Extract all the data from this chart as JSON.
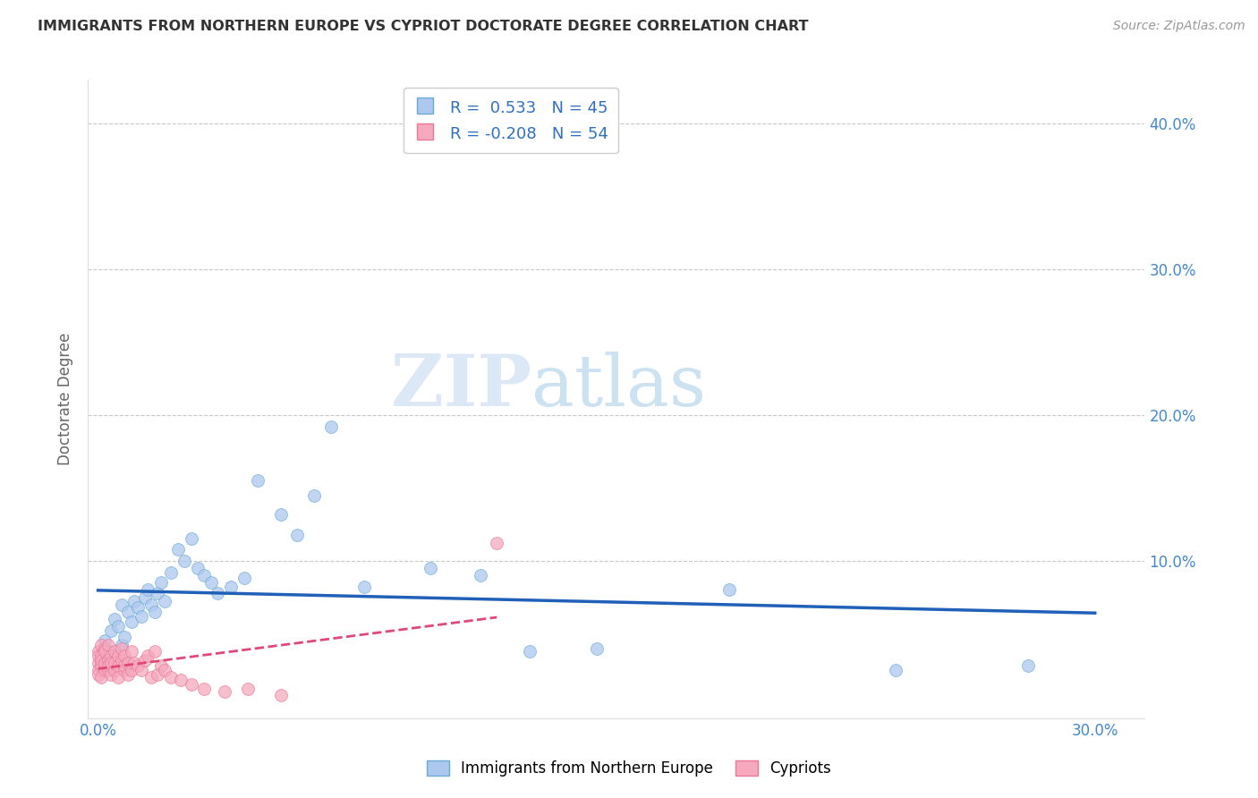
{
  "title": "IMMIGRANTS FROM NORTHERN EUROPE VS CYPRIOT DOCTORATE DEGREE CORRELATION CHART",
  "source": "Source: ZipAtlas.com",
  "ylabel": "Doctorate Degree",
  "legend_label_blue": "Immigrants from Northern Europe",
  "legend_label_pink": "Cypriots",
  "blue_R": 0.533,
  "blue_N": 45,
  "pink_R": -0.208,
  "pink_N": 54,
  "blue_color": "#adc8ee",
  "pink_color": "#f5a8be",
  "blue_edge_color": "#6aaad4",
  "pink_edge_color": "#e87898",
  "blue_line_color": "#2060b8",
  "pink_line_color": "#e04878",
  "xlim": [
    -0.003,
    0.315
  ],
  "ylim": [
    -0.008,
    0.43
  ],
  "xtick_positions": [
    0.0,
    0.05,
    0.1,
    0.15,
    0.2,
    0.25,
    0.3
  ],
  "ytick_positions": [
    0.0,
    0.1,
    0.2,
    0.3,
    0.4
  ],
  "watermark_zip": "ZIP",
  "watermark_atlas": "atlas",
  "blue_x": [
    0.001,
    0.002,
    0.003,
    0.004,
    0.005,
    0.005,
    0.006,
    0.007,
    0.007,
    0.008,
    0.009,
    0.01,
    0.011,
    0.012,
    0.013,
    0.014,
    0.015,
    0.016,
    0.017,
    0.018,
    0.019,
    0.02,
    0.022,
    0.024,
    0.026,
    0.028,
    0.03,
    0.032,
    0.034,
    0.036,
    0.04,
    0.044,
    0.048,
    0.055,
    0.06,
    0.065,
    0.07,
    0.08,
    0.1,
    0.115,
    0.13,
    0.15,
    0.19,
    0.24,
    0.28
  ],
  "blue_y": [
    0.03,
    0.045,
    0.038,
    0.052,
    0.06,
    0.035,
    0.055,
    0.042,
    0.07,
    0.048,
    0.065,
    0.058,
    0.072,
    0.068,
    0.062,
    0.075,
    0.08,
    0.07,
    0.065,
    0.078,
    0.085,
    0.072,
    0.092,
    0.108,
    0.1,
    0.115,
    0.095,
    0.09,
    0.085,
    0.078,
    0.082,
    0.088,
    0.155,
    0.132,
    0.118,
    0.145,
    0.192,
    0.082,
    0.095,
    0.09,
    0.038,
    0.04,
    0.08,
    0.025,
    0.028
  ],
  "pink_x": [
    0.0,
    0.0,
    0.0,
    0.0,
    0.0,
    0.001,
    0.001,
    0.001,
    0.001,
    0.001,
    0.002,
    0.002,
    0.002,
    0.002,
    0.003,
    0.003,
    0.003,
    0.003,
    0.004,
    0.004,
    0.004,
    0.005,
    0.005,
    0.005,
    0.006,
    0.006,
    0.006,
    0.007,
    0.007,
    0.008,
    0.008,
    0.008,
    0.009,
    0.009,
    0.01,
    0.01,
    0.011,
    0.012,
    0.013,
    0.014,
    0.015,
    0.016,
    0.017,
    0.018,
    0.019,
    0.02,
    0.022,
    0.025,
    0.028,
    0.032,
    0.038,
    0.045,
    0.055,
    0.12
  ],
  "pink_y": [
    0.03,
    0.038,
    0.025,
    0.035,
    0.022,
    0.042,
    0.028,
    0.035,
    0.02,
    0.032,
    0.04,
    0.025,
    0.03,
    0.038,
    0.032,
    0.025,
    0.028,
    0.042,
    0.035,
    0.022,
    0.03,
    0.038,
    0.025,
    0.03,
    0.028,
    0.035,
    0.02,
    0.032,
    0.04,
    0.025,
    0.035,
    0.028,
    0.03,
    0.022,
    0.038,
    0.025,
    0.03,
    0.028,
    0.025,
    0.032,
    0.035,
    0.02,
    0.038,
    0.022,
    0.028,
    0.025,
    0.02,
    0.018,
    0.015,
    0.012,
    0.01,
    0.012,
    0.008,
    0.112
  ]
}
